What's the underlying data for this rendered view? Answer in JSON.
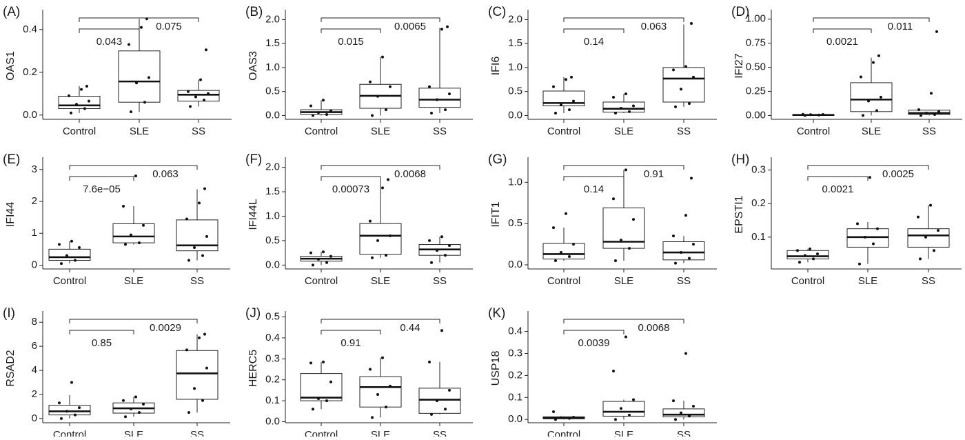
{
  "chart_data": [
    {
      "type": "box",
      "panel_label": "(A)",
      "ylabel": "OAS1",
      "categories": [
        "Control",
        "SLE",
        "SS"
      ],
      "yticks": [
        0.0,
        0.2,
        0.4
      ],
      "ylim": [
        -0.02,
        0.48
      ],
      "boxes": [
        {
          "q1": 0.03,
          "median": 0.045,
          "q3": 0.088,
          "wlow": 0.01,
          "whigh": 0.135
        },
        {
          "q1": 0.06,
          "median": 0.157,
          "q3": 0.3,
          "wlow": 0.015,
          "whigh": 0.45
        },
        {
          "q1": 0.065,
          "median": 0.095,
          "q3": 0.115,
          "wlow": 0.04,
          "whigh": 0.165
        }
      ],
      "points": [
        [
          0.01,
          0.03,
          0.05,
          0.065,
          0.09,
          0.12,
          0.135
        ],
        [
          0.015,
          0.06,
          0.15,
          0.175,
          0.33,
          0.41,
          0.45
        ],
        [
          0.04,
          0.07,
          0.085,
          0.1,
          0.11,
          0.165,
          0.305
        ]
      ],
      "comparisons": [
        {
          "label": "0.043",
          "from": 0,
          "to": 1
        },
        {
          "label": "0.075",
          "from": 0,
          "to": 2
        }
      ]
    },
    {
      "type": "box",
      "panel_label": "(B)",
      "ylabel": "OAS3",
      "categories": [
        "Control",
        "SLE",
        "SS"
      ],
      "yticks": [
        0.0,
        0.5,
        1.0,
        1.5,
        2.0
      ],
      "ylim": [
        -0.08,
        2.15
      ],
      "boxes": [
        {
          "q1": 0.02,
          "median": 0.07,
          "q3": 0.12,
          "wlow": 0.0,
          "whigh": 0.32
        },
        {
          "q1": 0.15,
          "median": 0.41,
          "q3": 0.65,
          "wlow": 0.0,
          "whigh": 1.22
        },
        {
          "q1": 0.17,
          "median": 0.33,
          "q3": 0.57,
          "wlow": 0.05,
          "whigh": 1.83
        }
      ],
      "points": [
        [
          0.0,
          0.02,
          0.06,
          0.1,
          0.2,
          0.32
        ],
        [
          0.0,
          0.12,
          0.4,
          0.6,
          0.7,
          1.22
        ],
        [
          0.05,
          0.12,
          0.33,
          0.45,
          0.6,
          1.8,
          1.85
        ]
      ],
      "comparisons": [
        {
          "label": "0.015",
          "from": 0,
          "to": 1
        },
        {
          "label": "0.0065",
          "from": 0,
          "to": 2
        }
      ]
    },
    {
      "type": "box",
      "panel_label": "(C)",
      "ylabel": "IFI6",
      "categories": [
        "Control",
        "SLE",
        "SS"
      ],
      "yticks": [
        0.0,
        0.5,
        1.0,
        1.5,
        2.0
      ],
      "ylim": [
        -0.08,
        2.15
      ],
      "boxes": [
        {
          "q1": 0.2,
          "median": 0.26,
          "q3": 0.51,
          "wlow": 0.05,
          "whigh": 0.8
        },
        {
          "q1": 0.07,
          "median": 0.14,
          "q3": 0.28,
          "wlow": 0.05,
          "whigh": 0.45
        },
        {
          "q1": 0.28,
          "median": 0.77,
          "q3": 1.0,
          "wlow": 0.18,
          "whigh": 1.9
        }
      ],
      "points": [
        [
          0.05,
          0.12,
          0.22,
          0.3,
          0.6,
          0.75,
          0.8
        ],
        [
          0.05,
          0.08,
          0.15,
          0.2,
          0.38,
          0.45
        ],
        [
          0.18,
          0.25,
          0.55,
          0.8,
          0.95,
          1.02,
          1.92
        ]
      ],
      "comparisons": [
        {
          "label": "0.14",
          "from": 0,
          "to": 1
        },
        {
          "label": "0.063",
          "from": 0,
          "to": 2
        }
      ]
    },
    {
      "type": "box",
      "panel_label": "(D)",
      "ylabel": "IFI27",
      "categories": [
        "Control",
        "SLE",
        "SS"
      ],
      "yticks": [
        0.0,
        0.25,
        0.5,
        0.75,
        1.0
      ],
      "ylim": [
        -0.04,
        1.07
      ],
      "boxes": [
        {
          "q1": 0.0,
          "median": 0.005,
          "q3": 0.01,
          "wlow": 0.0,
          "whigh": 0.015
        },
        {
          "q1": 0.04,
          "median": 0.165,
          "q3": 0.34,
          "wlow": 0.0,
          "whigh": 0.6
        },
        {
          "q1": 0.01,
          "median": 0.025,
          "q3": 0.055,
          "wlow": 0.0,
          "whigh": 0.06
        }
      ],
      "points": [
        [
          0.0,
          0.005,
          0.008,
          0.01,
          0.012
        ],
        [
          0.0,
          0.05,
          0.15,
          0.19,
          0.4,
          0.55,
          0.62
        ],
        [
          0.0,
          0.01,
          0.025,
          0.04,
          0.06,
          0.23,
          0.87
        ]
      ],
      "comparisons": [
        {
          "label": "0.0021",
          "from": 0,
          "to": 1
        },
        {
          "label": "0.011",
          "from": 0,
          "to": 2
        }
      ]
    },
    {
      "type": "box",
      "panel_label": "(E)",
      "ylabel": "IFI44",
      "categories": [
        "Control",
        "SLE",
        "SS"
      ],
      "yticks": [
        0,
        1,
        2,
        3
      ],
      "ylim": [
        -0.12,
        3.3
      ],
      "boxes": [
        {
          "q1": 0.15,
          "median": 0.25,
          "q3": 0.5,
          "wlow": 0.05,
          "whigh": 0.75
        },
        {
          "q1": 0.7,
          "median": 0.9,
          "q3": 1.3,
          "wlow": 0.65,
          "whigh": 1.85
        },
        {
          "q1": 0.45,
          "median": 0.62,
          "q3": 1.42,
          "wlow": 0.15,
          "whigh": 2.38
        }
      ],
      "points": [
        [
          0.05,
          0.15,
          0.3,
          0.55,
          0.65,
          0.75
        ],
        [
          0.65,
          0.7,
          0.95,
          1.25,
          1.85,
          2.8
        ],
        [
          0.15,
          0.3,
          0.55,
          0.9,
          1.45,
          1.95,
          2.4
        ]
      ],
      "comparisons": [
        {
          "label": "7.6e−05",
          "from": 0,
          "to": 1
        },
        {
          "label": "0.063",
          "from": 0,
          "to": 2
        }
      ]
    },
    {
      "type": "box",
      "panel_label": "(F)",
      "ylabel": "IFI44L",
      "categories": [
        "Control",
        "SLE",
        "SS"
      ],
      "yticks": [
        0.0,
        0.5,
        1.0,
        1.5,
        2.0
      ],
      "ylim": [
        -0.08,
        2.15
      ],
      "boxes": [
        {
          "q1": 0.08,
          "median": 0.13,
          "q3": 0.18,
          "wlow": 0.0,
          "whigh": 0.27
        },
        {
          "q1": 0.22,
          "median": 0.6,
          "q3": 0.85,
          "wlow": 0.15,
          "whigh": 1.75
        },
        {
          "q1": 0.2,
          "median": 0.32,
          "q3": 0.42,
          "wlow": 0.05,
          "whigh": 0.58
        }
      ],
      "points": [
        [
          0.0,
          0.05,
          0.12,
          0.18,
          0.25,
          0.27
        ],
        [
          0.15,
          0.2,
          0.5,
          0.6,
          0.9,
          1.58,
          1.75
        ],
        [
          0.05,
          0.2,
          0.3,
          0.4,
          0.5,
          0.58
        ]
      ],
      "comparisons": [
        {
          "label": "0.00073",
          "from": 0,
          "to": 1
        },
        {
          "label": "0.0068",
          "from": 0,
          "to": 2
        }
      ]
    },
    {
      "type": "box",
      "panel_label": "(G)",
      "ylabel": "IFIT1",
      "categories": [
        "Control",
        "SLE",
        "SS"
      ],
      "yticks": [
        0.0,
        0.5,
        1.0
      ],
      "ylim": [
        -0.05,
        1.27
      ],
      "boxes": [
        {
          "q1": 0.07,
          "median": 0.13,
          "q3": 0.26,
          "wlow": 0.05,
          "whigh": 0.45
        },
        {
          "q1": 0.2,
          "median": 0.28,
          "q3": 0.69,
          "wlow": 0.05,
          "whigh": 1.15
        },
        {
          "q1": 0.06,
          "median": 0.15,
          "q3": 0.28,
          "wlow": 0.02,
          "whigh": 0.35
        }
      ],
      "points": [
        [
          0.05,
          0.1,
          0.15,
          0.25,
          0.45,
          0.62
        ],
        [
          0.05,
          0.2,
          0.3,
          0.55,
          0.8,
          1.15
        ],
        [
          0.02,
          0.08,
          0.15,
          0.25,
          0.35,
          0.6,
          1.05
        ]
      ],
      "comparisons": [
        {
          "label": "0.14",
          "from": 0,
          "to": 1
        },
        {
          "label": "0.91",
          "from": 0,
          "to": 2
        }
      ]
    },
    {
      "type": "box",
      "panel_label": "(H)",
      "ylabel": "EPSTI1",
      "categories": [
        "Control",
        "SLE",
        "SS"
      ],
      "yticks": [
        0.1,
        0.2,
        0.3
      ],
      "ylim": [
        0.005,
        0.33
      ],
      "boxes": [
        {
          "q1": 0.035,
          "median": 0.043,
          "q3": 0.06,
          "wlow": 0.025,
          "whigh": 0.065
        },
        {
          "q1": 0.07,
          "median": 0.1,
          "q3": 0.125,
          "wlow": 0.02,
          "whigh": 0.145
        },
        {
          "q1": 0.07,
          "median": 0.105,
          "q3": 0.125,
          "wlow": 0.035,
          "whigh": 0.195
        }
      ],
      "points": [
        [
          0.025,
          0.035,
          0.045,
          0.05,
          0.06,
          0.065
        ],
        [
          0.02,
          0.08,
          0.1,
          0.125,
          0.14,
          0.278
        ],
        [
          0.035,
          0.06,
          0.1,
          0.12,
          0.16,
          0.195
        ]
      ],
      "comparisons": [
        {
          "label": "0.0021",
          "from": 0,
          "to": 1
        },
        {
          "label": "0.0025",
          "from": 0,
          "to": 2
        }
      ]
    },
    {
      "type": "box",
      "panel_label": "(I)",
      "ylabel": "RSAD2",
      "categories": [
        "Control",
        "SLE",
        "SS"
      ],
      "yticks": [
        0,
        2,
        4,
        6,
        8
      ],
      "ylim": [
        -0.35,
        8.7
      ],
      "boxes": [
        {
          "q1": 0.3,
          "median": 0.6,
          "q3": 1.1,
          "wlow": 0.0,
          "whigh": 1.95
        },
        {
          "q1": 0.45,
          "median": 0.85,
          "q3": 1.3,
          "wlow": 0.15,
          "whigh": 1.8
        },
        {
          "q1": 1.6,
          "median": 3.75,
          "q3": 5.65,
          "wlow": 0.5,
          "whigh": 7.0
        }
      ],
      "points": [
        [
          0.0,
          0.3,
          0.6,
          0.9,
          1.3,
          3.0
        ],
        [
          0.15,
          0.5,
          0.8,
          1.2,
          1.5,
          1.8
        ],
        [
          0.5,
          1.5,
          2.5,
          4.2,
          5.7,
          6.7,
          7.0
        ]
      ],
      "comparisons": [
        {
          "label": "0.85",
          "from": 0,
          "to": 1
        },
        {
          "label": "0.0029",
          "from": 0,
          "to": 2
        }
      ]
    },
    {
      "type": "box",
      "panel_label": "(J)",
      "ylabel": "HERC5",
      "categories": [
        "Control",
        "SLE",
        "SS"
      ],
      "yticks": [
        0.0,
        0.1,
        0.2,
        0.3,
        0.4,
        0.5
      ],
      "ylim": [
        -0.005,
        0.515
      ],
      "boxes": [
        {
          "q1": 0.1,
          "median": 0.115,
          "q3": 0.23,
          "wlow": 0.06,
          "whigh": 0.285
        },
        {
          "q1": 0.07,
          "median": 0.165,
          "q3": 0.215,
          "wlow": 0.02,
          "whigh": 0.305
        },
        {
          "q1": 0.04,
          "median": 0.105,
          "q3": 0.16,
          "wlow": 0.035,
          "whigh": 0.285
        }
      ],
      "points": [
        [
          0.06,
          0.1,
          0.11,
          0.19,
          0.28,
          0.285
        ],
        [
          0.02,
          0.07,
          0.13,
          0.17,
          0.25,
          0.305
        ],
        [
          0.035,
          0.06,
          0.1,
          0.15,
          0.285,
          0.435
        ]
      ],
      "comparisons": [
        {
          "label": "0.91",
          "from": 0,
          "to": 1
        },
        {
          "label": "0.44",
          "from": 0,
          "to": 2
        }
      ]
    },
    {
      "type": "box",
      "panel_label": "(K)",
      "ylabel": "USP18",
      "categories": [
        "Control",
        "SLE",
        "SS"
      ],
      "yticks": [
        0.0,
        0.1,
        0.2,
        0.3,
        0.4
      ],
      "ylim": [
        -0.015,
        0.48
      ],
      "boxes": [
        {
          "q1": 0.003,
          "median": 0.007,
          "q3": 0.012,
          "wlow": 0.0,
          "whigh": 0.014
        },
        {
          "q1": 0.015,
          "median": 0.035,
          "q3": 0.082,
          "wlow": 0.0,
          "whigh": 0.09
        },
        {
          "q1": 0.012,
          "median": 0.022,
          "q3": 0.048,
          "wlow": 0.0,
          "whigh": 0.085
        }
      ],
      "points": [
        [
          0.0,
          0.005,
          0.008,
          0.01,
          0.035
        ],
        [
          0.0,
          0.02,
          0.05,
          0.09,
          0.22,
          0.375
        ],
        [
          0.0,
          0.015,
          0.03,
          0.06,
          0.085,
          0.3
        ]
      ],
      "comparisons": [
        {
          "label": "0.0039",
          "from": 0,
          "to": 1
        },
        {
          "label": "0.0068",
          "from": 0,
          "to": 2
        }
      ]
    }
  ]
}
